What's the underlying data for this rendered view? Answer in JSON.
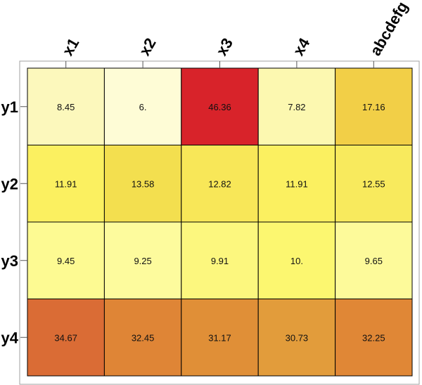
{
  "chart_data": {
    "type": "heatmap",
    "title": "",
    "columns": [
      "x1",
      "x2",
      "x3",
      "x4",
      "abcdefg"
    ],
    "rows": [
      "y1",
      "y2",
      "y3",
      "y4"
    ],
    "values": [
      [
        8.45,
        6.0,
        46.36,
        7.82,
        17.16
      ],
      [
        11.91,
        13.58,
        12.82,
        11.91,
        12.55
      ],
      [
        9.45,
        9.25,
        9.91,
        10.0,
        9.65
      ],
      [
        34.67,
        32.45,
        31.17,
        30.73,
        32.25
      ]
    ],
    "labels": [
      [
        "8.45",
        "6.",
        "46.36",
        "7.82",
        "17.16"
      ],
      [
        "11.91",
        "13.58",
        "12.82",
        "11.91",
        "12.55"
      ],
      [
        "9.45",
        "9.25",
        "9.91",
        "10.",
        "9.65"
      ],
      [
        "34.67",
        "32.45",
        "31.17",
        "30.73",
        "32.25"
      ]
    ],
    "colors": [
      [
        "#fcf8bc",
        "#fefcd6",
        "#d8232a",
        "#fcf8b0",
        "#f2cf47"
      ],
      [
        "#fbf060",
        "#f3df4f",
        "#f8e758",
        "#fbf060",
        "#f8ea5d"
      ],
      [
        "#fdfa92",
        "#fdfb9d",
        "#fcf77e",
        "#fcf770",
        "#fdfa9a"
      ],
      [
        "#da6c35",
        "#df8536",
        "#e08f37",
        "#e29c3b",
        "#e08736"
      ]
    ],
    "colorscale": "yellow-orange-red",
    "legend": "none",
    "grid": false
  }
}
